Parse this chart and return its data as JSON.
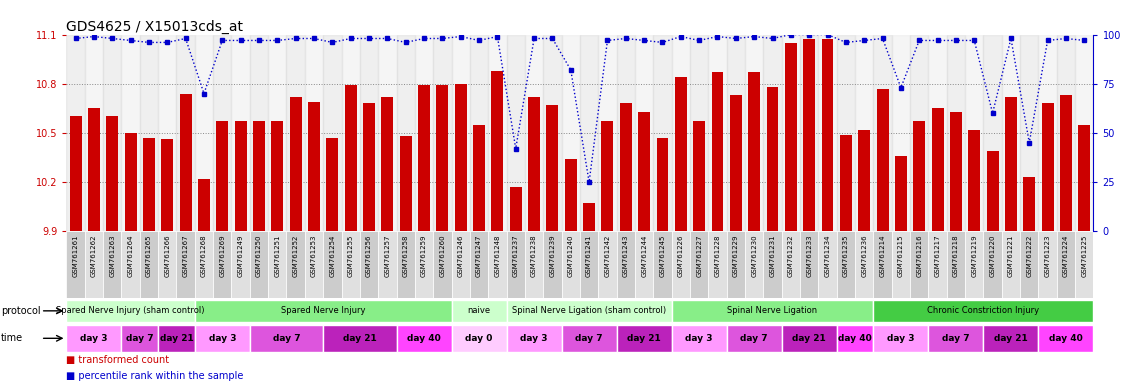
{
  "title": "GDS4625 / X15013cds_at",
  "ylim": [
    9.9,
    11.1
  ],
  "yticks": [
    9.9,
    10.2,
    10.5,
    10.8,
    11.1
  ],
  "right_ylim": [
    0,
    100
  ],
  "right_yticks": [
    0,
    25,
    50,
    75,
    100
  ],
  "bar_color": "#cc0000",
  "dot_color": "#0000cc",
  "samples": [
    "GSM761261",
    "GSM761262",
    "GSM761263",
    "GSM761264",
    "GSM761265",
    "GSM761266",
    "GSM761267",
    "GSM761268",
    "GSM761269",
    "GSM761249",
    "GSM761250",
    "GSM761251",
    "GSM761252",
    "GSM761253",
    "GSM761254",
    "GSM761255",
    "GSM761256",
    "GSM761257",
    "GSM761258",
    "GSM761259",
    "GSM761260",
    "GSM761246",
    "GSM761247",
    "GSM761248",
    "GSM761237",
    "GSM761238",
    "GSM761239",
    "GSM761240",
    "GSM761241",
    "GSM761242",
    "GSM761243",
    "GSM761244",
    "GSM761245",
    "GSM761226",
    "GSM761227",
    "GSM761228",
    "GSM761229",
    "GSM761230",
    "GSM761231",
    "GSM761232",
    "GSM761233",
    "GSM761234",
    "GSM761235",
    "GSM761236",
    "GSM761214",
    "GSM761215",
    "GSM761216",
    "GSM761217",
    "GSM761218",
    "GSM761219",
    "GSM761220",
    "GSM761221",
    "GSM761222",
    "GSM761223",
    "GSM761224",
    "GSM761225"
  ],
  "bar_values": [
    10.6,
    10.65,
    10.6,
    10.5,
    10.47,
    10.46,
    10.74,
    10.22,
    10.57,
    10.57,
    10.57,
    10.57,
    10.72,
    10.69,
    10.47,
    10.79,
    10.68,
    10.72,
    10.48,
    10.79,
    10.79,
    10.8,
    10.55,
    10.88,
    10.17,
    10.72,
    10.67,
    10.34,
    10.07,
    10.57,
    10.68,
    10.63,
    10.47,
    10.84,
    10.57,
    10.87,
    10.73,
    10.87,
    10.78,
    11.05,
    11.07,
    11.07,
    10.49,
    10.52,
    10.77,
    10.36,
    10.57,
    10.65,
    10.63,
    10.52,
    10.39,
    10.72,
    10.23,
    10.68,
    10.73,
    10.55
  ],
  "percentile_values": [
    98,
    99,
    98,
    97,
    96,
    96,
    98,
    70,
    97,
    97,
    97,
    97,
    98,
    98,
    96,
    98,
    98,
    98,
    96,
    98,
    98,
    99,
    97,
    99,
    42,
    98,
    98,
    82,
    25,
    97,
    98,
    97,
    96,
    99,
    97,
    99,
    98,
    99,
    98,
    100,
    100,
    100,
    96,
    97,
    98,
    73,
    97,
    97,
    97,
    97,
    60,
    98,
    45,
    97,
    98,
    97
  ],
  "protocols": [
    {
      "label": "Spared Nerve Injury (sham control)",
      "start": 0,
      "end": 7,
      "color": "#ccffcc"
    },
    {
      "label": "Spared Nerve Injury",
      "start": 7,
      "end": 21,
      "color": "#88ee88"
    },
    {
      "label": "naive",
      "start": 21,
      "end": 24,
      "color": "#ccffcc"
    },
    {
      "label": "Spinal Nerve Ligation (sham control)",
      "start": 24,
      "end": 33,
      "color": "#ccffcc"
    },
    {
      "label": "Spinal Nerve Ligation",
      "start": 33,
      "end": 44,
      "color": "#88ee88"
    },
    {
      "label": "Chronic Constriction Injury",
      "start": 44,
      "end": 56,
      "color": "#44cc44"
    }
  ],
  "times": [
    {
      "label": "day 3",
      "start": 0,
      "end": 3,
      "color": "#ff99ff"
    },
    {
      "label": "day 7",
      "start": 3,
      "end": 5,
      "color": "#dd55dd"
    },
    {
      "label": "day 21",
      "start": 5,
      "end": 7,
      "color": "#bb22bb"
    },
    {
      "label": "day 3",
      "start": 7,
      "end": 10,
      "color": "#ff99ff"
    },
    {
      "label": "day 7",
      "start": 10,
      "end": 14,
      "color": "#dd55dd"
    },
    {
      "label": "day 21",
      "start": 14,
      "end": 18,
      "color": "#bb22bb"
    },
    {
      "label": "day 40",
      "start": 18,
      "end": 21,
      "color": "#ff44ff"
    },
    {
      "label": "day 0",
      "start": 21,
      "end": 24,
      "color": "#ffccff"
    },
    {
      "label": "day 3",
      "start": 24,
      "end": 27,
      "color": "#ff99ff"
    },
    {
      "label": "day 7",
      "start": 27,
      "end": 30,
      "color": "#dd55dd"
    },
    {
      "label": "day 21",
      "start": 30,
      "end": 33,
      "color": "#bb22bb"
    },
    {
      "label": "day 3",
      "start": 33,
      "end": 36,
      "color": "#ff99ff"
    },
    {
      "label": "day 7",
      "start": 36,
      "end": 39,
      "color": "#dd55dd"
    },
    {
      "label": "day 21",
      "start": 39,
      "end": 42,
      "color": "#bb22bb"
    },
    {
      "label": "day 40",
      "start": 42,
      "end": 44,
      "color": "#ff44ff"
    },
    {
      "label": "day 3",
      "start": 44,
      "end": 47,
      "color": "#ff99ff"
    },
    {
      "label": "day 7",
      "start": 47,
      "end": 50,
      "color": "#dd55dd"
    },
    {
      "label": "day 21",
      "start": 50,
      "end": 53,
      "color": "#bb22bb"
    },
    {
      "label": "day 40",
      "start": 53,
      "end": 56,
      "color": "#ff44ff"
    }
  ],
  "bg_color": "#ffffff",
  "left_tick_color": "#cc0000",
  "right_tick_color": "#0000cc",
  "label_bg_even": "#cccccc",
  "label_bg_odd": "#e0e0e0"
}
